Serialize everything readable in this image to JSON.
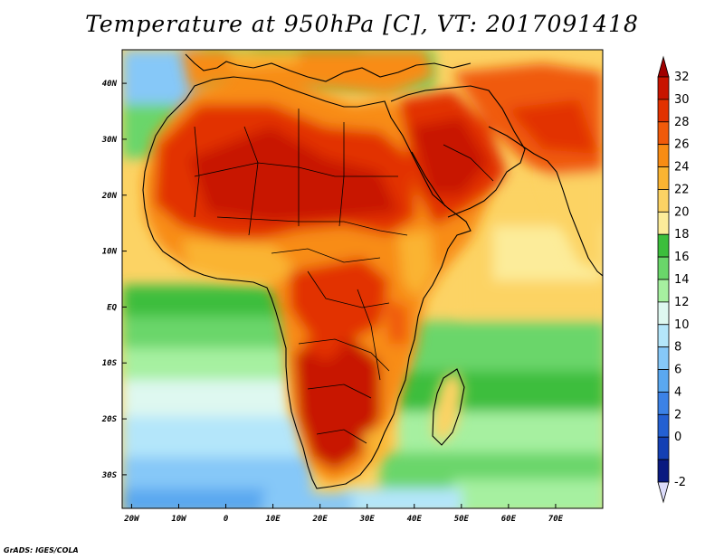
{
  "title": "Temperature at 950hPa [C], VT: 2017091418",
  "credit": "GrADS: IGES/COLA",
  "map": {
    "lon_range": [
      -22,
      80
    ],
    "lat_range": [
      -36,
      46
    ],
    "lat_labels": [
      {
        "lat": 40,
        "text": "40N"
      },
      {
        "lat": 30,
        "text": "30N"
      },
      {
        "lat": 20,
        "text": "20N"
      },
      {
        "lat": 10,
        "text": "10N"
      },
      {
        "lat": 0,
        "text": "EQ"
      },
      {
        "lat": -10,
        "text": "10S"
      },
      {
        "lat": -20,
        "text": "20S"
      },
      {
        "lat": -30,
        "text": "30S"
      }
    ],
    "lon_labels": [
      {
        "lon": -20,
        "text": "20W"
      },
      {
        "lon": -10,
        "text": "10W"
      },
      {
        "lon": 0,
        "text": "0"
      },
      {
        "lon": 10,
        "text": "10E"
      },
      {
        "lon": 20,
        "text": "20E"
      },
      {
        "lon": 30,
        "text": "30E"
      },
      {
        "lon": 40,
        "text": "40E"
      },
      {
        "lon": 50,
        "text": "50E"
      },
      {
        "lon": 60,
        "text": "60E"
      },
      {
        "lon": 70,
        "text": "70E"
      }
    ]
  },
  "colorbar": {
    "levels": [
      {
        "value": "32",
        "color": "#c81400"
      },
      {
        "value": "30",
        "color": "#e23200"
      },
      {
        "value": "28",
        "color": "#f05a0a"
      },
      {
        "value": "26",
        "color": "#f88c14"
      },
      {
        "value": "24",
        "color": "#fab432"
      },
      {
        "value": "22",
        "color": "#fcd364"
      },
      {
        "value": "20",
        "color": "#fcec9a"
      },
      {
        "value": "18",
        "color": "#3cbe3c"
      },
      {
        "value": "16",
        "color": "#6ad66a"
      },
      {
        "value": "14",
        "color": "#a6f0a0"
      },
      {
        "value": "12",
        "color": "#def8f0"
      },
      {
        "value": "10",
        "color": "#b4e6fa"
      },
      {
        "value": "8",
        "color": "#86c8f8"
      },
      {
        "value": "6",
        "color": "#5aa8f0"
      },
      {
        "value": "4",
        "color": "#3c82e6"
      },
      {
        "value": "2",
        "color": "#2460d2"
      },
      {
        "value": "0",
        "color": "#1440b4"
      },
      {
        "value": "-2",
        "color": "#0a1a80"
      }
    ],
    "top_color": "#a00000",
    "bottom_color": "#dcdcfa"
  }
}
